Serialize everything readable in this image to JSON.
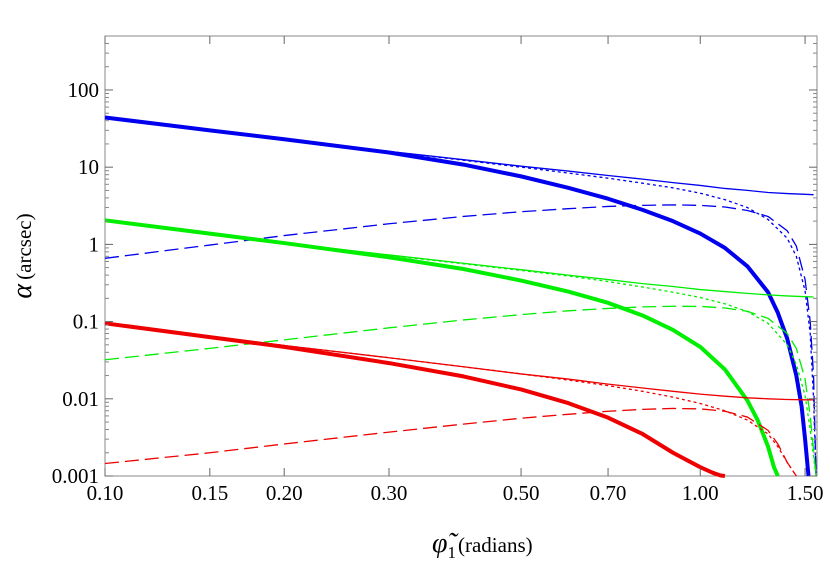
{
  "chart_data": {
    "type": "line",
    "title": "",
    "xlabel_symbol": "φ̃",
    "xlabel_subscript": "1",
    "xlabel_unit": "(radians)",
    "ylabel_symbol": "α",
    "ylabel_unit": "(arcsec)",
    "x_scale": "log",
    "y_scale": "log",
    "xlim": [
      0.1,
      1.5708
    ],
    "ylim": [
      0.001,
      500
    ],
    "grid": false,
    "legend": "none",
    "x_ticks": [
      {
        "value": 0.1,
        "label": "0.10"
      },
      {
        "value": 0.15,
        "label": "0.15"
      },
      {
        "value": 0.2,
        "label": "0.20"
      },
      {
        "value": 0.3,
        "label": "0.30"
      },
      {
        "value": 0.5,
        "label": "0.50"
      },
      {
        "value": 0.7,
        "label": "0.70"
      },
      {
        "value": 1.0,
        "label": "1.00"
      },
      {
        "value": 1.5,
        "label": "1.50"
      }
    ],
    "y_ticks": [
      {
        "value": 0.001,
        "label": "0.001"
      },
      {
        "value": 0.01,
        "label": "0.01"
      },
      {
        "value": 0.1,
        "label": "0.1"
      },
      {
        "value": 1,
        "label": "1"
      },
      {
        "value": 10,
        "label": "10"
      },
      {
        "value": 100,
        "label": "100"
      }
    ],
    "series": [
      {
        "color": "#0000ee",
        "style": "thick-solid",
        "x": [
          0.1,
          0.15,
          0.2,
          0.3,
          0.4,
          0.5,
          0.6,
          0.7,
          0.8,
          0.9,
          1.0,
          1.1,
          1.2,
          1.3,
          1.35,
          1.4,
          1.45,
          1.48,
          1.5,
          1.52
        ],
        "y": [
          44,
          30,
          23,
          15.5,
          10.8,
          7.6,
          5.4,
          3.9,
          2.8,
          2.0,
          1.38,
          0.9,
          0.52,
          0.24,
          0.13,
          0.06,
          0.02,
          0.008,
          0.003,
          0.001
        ]
      },
      {
        "color": "#0000ee",
        "style": "thin-solid",
        "x": [
          0.1,
          0.15,
          0.2,
          0.3,
          0.4,
          0.5,
          0.6,
          0.7,
          0.8,
          0.9,
          1.0,
          1.1,
          1.2,
          1.3,
          1.4,
          1.5,
          1.55
        ],
        "y": [
          44,
          30,
          23,
          16,
          12.5,
          10.3,
          8.9,
          7.8,
          7.0,
          6.3,
          5.8,
          5.3,
          5.0,
          4.7,
          4.55,
          4.45,
          4.4
        ]
      },
      {
        "color": "#0000ee",
        "style": "dotted",
        "x": [
          0.1,
          0.2,
          0.3,
          0.4,
          0.5,
          0.6,
          0.7,
          0.8,
          0.9,
          1.0,
          1.1,
          1.2,
          1.3,
          1.4,
          1.45,
          1.5,
          1.53,
          1.55,
          1.565
        ],
        "y": [
          44,
          23,
          16,
          12.3,
          10,
          8.4,
          7.2,
          6.2,
          5.4,
          4.6,
          3.8,
          3.0,
          2.1,
          1.2,
          0.7,
          0.25,
          0.07,
          0.01,
          0.001
        ]
      },
      {
        "color": "#0000ee",
        "style": "dashed",
        "x": [
          0.1,
          0.15,
          0.2,
          0.3,
          0.4,
          0.5,
          0.6,
          0.7,
          0.8,
          0.9,
          1.0,
          1.1,
          1.2,
          1.3,
          1.4,
          1.45,
          1.5,
          1.53,
          1.55,
          1.565
        ],
        "y": [
          0.66,
          0.98,
          1.3,
          1.85,
          2.3,
          2.65,
          2.9,
          3.1,
          3.2,
          3.25,
          3.2,
          3.05,
          2.75,
          2.3,
          1.5,
          0.95,
          0.35,
          0.1,
          0.02,
          0.001
        ]
      },
      {
        "color": "#00ee00",
        "style": "thick-solid",
        "x": [
          0.1,
          0.15,
          0.2,
          0.3,
          0.4,
          0.5,
          0.6,
          0.7,
          0.8,
          0.9,
          1.0,
          1.1,
          1.2,
          1.25,
          1.3,
          1.33,
          1.35
        ],
        "y": [
          2.05,
          1.38,
          1.04,
          0.68,
          0.48,
          0.34,
          0.245,
          0.175,
          0.12,
          0.078,
          0.047,
          0.024,
          0.0095,
          0.0052,
          0.0024,
          0.0013,
          0.001
        ]
      },
      {
        "color": "#00ee00",
        "style": "thin-solid",
        "x": [
          0.1,
          0.15,
          0.2,
          0.3,
          0.4,
          0.5,
          0.6,
          0.7,
          0.8,
          0.9,
          1.0,
          1.1,
          1.2,
          1.3,
          1.4,
          1.5,
          1.55
        ],
        "y": [
          2.05,
          1.38,
          1.05,
          0.73,
          0.57,
          0.47,
          0.4,
          0.35,
          0.31,
          0.285,
          0.26,
          0.245,
          0.232,
          0.222,
          0.215,
          0.21,
          0.208
        ]
      },
      {
        "color": "#00ee00",
        "style": "dotted",
        "x": [
          0.1,
          0.2,
          0.3,
          0.4,
          0.5,
          0.6,
          0.7,
          0.8,
          0.9,
          1.0,
          1.1,
          1.2,
          1.3,
          1.4,
          1.45,
          1.5,
          1.53,
          1.55,
          1.565
        ],
        "y": [
          2.05,
          1.05,
          0.72,
          0.56,
          0.46,
          0.39,
          0.33,
          0.28,
          0.24,
          0.205,
          0.17,
          0.135,
          0.095,
          0.05,
          0.028,
          0.011,
          0.004,
          0.0018,
          0.001
        ]
      },
      {
        "color": "#00ee00",
        "style": "dashed",
        "x": [
          0.1,
          0.15,
          0.2,
          0.3,
          0.4,
          0.5,
          0.6,
          0.7,
          0.8,
          0.9,
          1.0,
          1.1,
          1.2,
          1.3,
          1.4,
          1.45,
          1.5,
          1.53,
          1.55,
          1.565
        ],
        "y": [
          0.032,
          0.045,
          0.058,
          0.083,
          0.105,
          0.123,
          0.138,
          0.148,
          0.155,
          0.158,
          0.157,
          0.15,
          0.136,
          0.11,
          0.07,
          0.045,
          0.018,
          0.006,
          0.0022,
          0.001
        ]
      },
      {
        "color": "#ee0000",
        "style": "thick-solid",
        "x": [
          0.1,
          0.15,
          0.2,
          0.3,
          0.4,
          0.5,
          0.6,
          0.7,
          0.8,
          0.9,
          1.0,
          1.05,
          1.08,
          1.1
        ],
        "y": [
          0.095,
          0.063,
          0.047,
          0.029,
          0.0195,
          0.0132,
          0.0088,
          0.0057,
          0.0035,
          0.002,
          0.0013,
          0.0011,
          0.00102,
          0.001
        ]
      },
      {
        "color": "#ee0000",
        "style": "thin-solid",
        "x": [
          0.1,
          0.15,
          0.2,
          0.3,
          0.4,
          0.5,
          0.6,
          0.7,
          0.8,
          0.9,
          1.0,
          1.1,
          1.2,
          1.3,
          1.4,
          1.5,
          1.55
        ],
        "y": [
          0.095,
          0.065,
          0.049,
          0.034,
          0.026,
          0.021,
          0.018,
          0.0155,
          0.0138,
          0.0125,
          0.0115,
          0.0108,
          0.0103,
          0.01,
          0.0098,
          0.0097,
          0.0097
        ]
      },
      {
        "color": "#ee0000",
        "style": "dotted",
        "x": [
          0.1,
          0.2,
          0.3,
          0.4,
          0.5,
          0.6,
          0.7,
          0.8,
          0.9,
          1.0,
          1.1,
          1.2,
          1.3,
          1.35,
          1.4,
          1.45
        ],
        "y": [
          0.095,
          0.049,
          0.034,
          0.026,
          0.021,
          0.0175,
          0.0148,
          0.0125,
          0.0105,
          0.0087,
          0.007,
          0.0053,
          0.0035,
          0.0024,
          0.0015,
          0.001
        ]
      },
      {
        "color": "#ee0000",
        "style": "dashed",
        "x": [
          0.1,
          0.15,
          0.2,
          0.3,
          0.4,
          0.5,
          0.6,
          0.7,
          0.8,
          0.9,
          1.0,
          1.1,
          1.2,
          1.3,
          1.35,
          1.4,
          1.45
        ],
        "y": [
          0.00145,
          0.002,
          0.0026,
          0.0037,
          0.0047,
          0.0056,
          0.0063,
          0.0069,
          0.0073,
          0.0075,
          0.0074,
          0.0069,
          0.0058,
          0.0039,
          0.0026,
          0.0015,
          0.001
        ]
      }
    ]
  }
}
